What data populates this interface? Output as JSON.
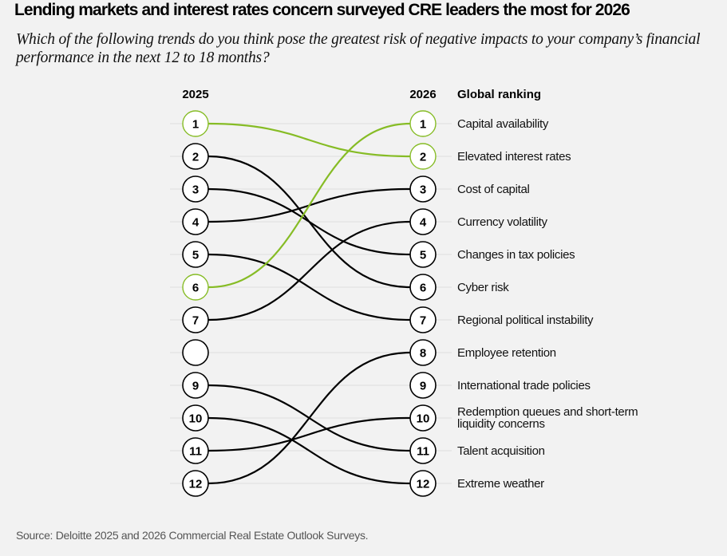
{
  "title": "Lending markets and interest rates concern surveyed CRE leaders the most for 2026",
  "subtitle": "Which of the following trends do you think pose the greatest risk of negative impacts to your company’s financial performance in the next 12 to 18 months?",
  "source": "Source: Deloitte 2025 and 2026 Commercial Real Estate Outlook Surveys.",
  "colors": {
    "highlight": "#86bc25",
    "default": "#000000",
    "background": "#f2f2f2",
    "gridline": "#dedede",
    "node_fill": "#ffffff"
  },
  "chart_data": {
    "type": "slope",
    "title": "Lending markets and interest rates concern surveyed CRE leaders the most for 2026",
    "left_header": "2025",
    "right_header": "2026",
    "label_header": "Global ranking",
    "ranks": [
      1,
      2,
      3,
      4,
      5,
      6,
      7,
      8,
      9,
      10,
      11,
      12
    ],
    "left_rank_labels": [
      "1",
      "2",
      "3",
      "4",
      "5",
      "6",
      "7",
      "",
      "9",
      "10",
      "11",
      "12"
    ],
    "right_rank_labels": [
      "1",
      "2",
      "3",
      "4",
      "5",
      "6",
      "7",
      "8",
      "9",
      "10",
      "11",
      "12"
    ],
    "items_by_2026_rank": [
      {
        "rank_2026": 1,
        "label": "Capital availability",
        "rank_2025": 6,
        "highlight": true
      },
      {
        "rank_2026": 2,
        "label": "Elevated interest rates",
        "rank_2025": 1,
        "highlight": true
      },
      {
        "rank_2026": 3,
        "label": "Cost of capital",
        "rank_2025": 4,
        "highlight": false
      },
      {
        "rank_2026": 4,
        "label": "Currency volatility",
        "rank_2025": 7,
        "highlight": false
      },
      {
        "rank_2026": 5,
        "label": "Changes in tax policies",
        "rank_2025": 3,
        "highlight": false
      },
      {
        "rank_2026": 6,
        "label": "Cyber risk",
        "rank_2025": 2,
        "highlight": false
      },
      {
        "rank_2026": 7,
        "label": "Regional political instability",
        "rank_2025": 5,
        "highlight": false
      },
      {
        "rank_2026": 8,
        "label": "Employee retention",
        "rank_2025": 12,
        "highlight": false
      },
      {
        "rank_2026": 9,
        "label": "International trade policies",
        "rank_2025": null,
        "highlight": false
      },
      {
        "rank_2026": 10,
        "label": "Redemption queues and short-term liquidity concerns",
        "label_lines": [
          "Redemption queues and short-term",
          "liquidity concerns"
        ],
        "rank_2025": 11,
        "highlight": false
      },
      {
        "rank_2026": 11,
        "label": "Talent acquisition",
        "rank_2025": 9,
        "highlight": false
      },
      {
        "rank_2026": 12,
        "label": "Extreme weather",
        "rank_2025": 10,
        "highlight": false
      }
    ],
    "empty_left_slots": [
      8
    ]
  }
}
